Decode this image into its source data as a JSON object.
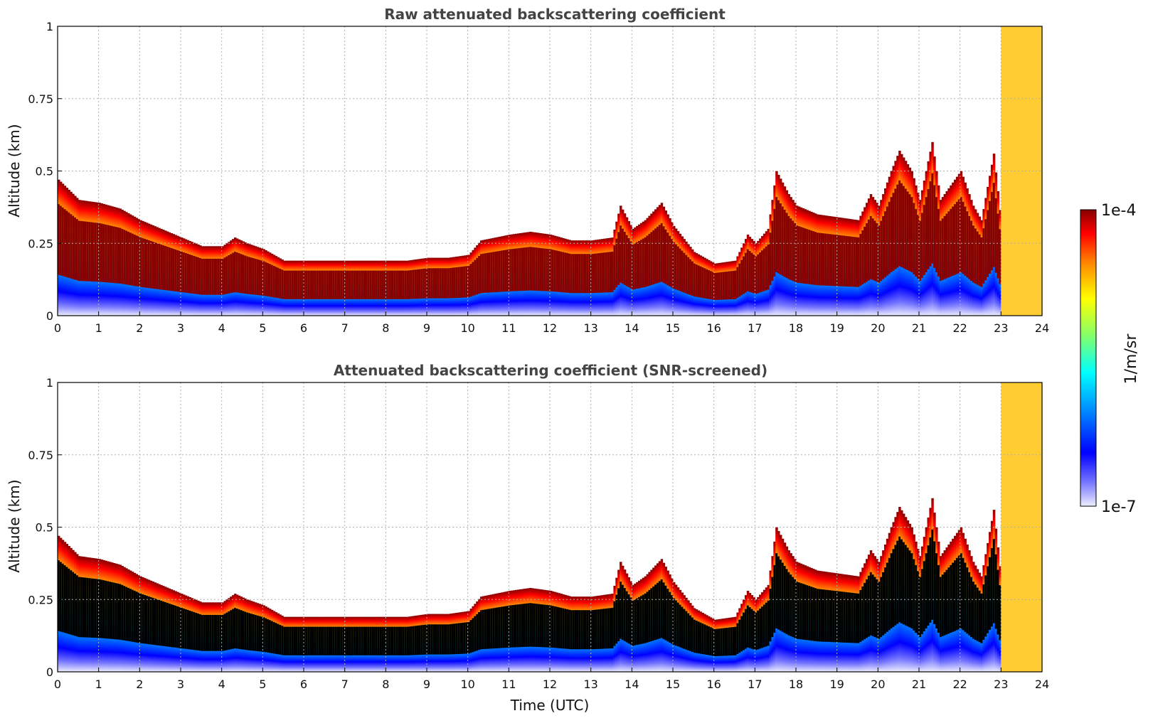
{
  "chart_data": [
    {
      "type": "heatmap",
      "title": "Raw attenuated backscattering coefficient",
      "xlabel": "",
      "ylabel": "Altitude (km)",
      "xlim": [
        0,
        24
      ],
      "ylim": [
        0,
        1
      ],
      "x_ticks": [
        "0",
        "1",
        "2",
        "3",
        "4",
        "5",
        "6",
        "7",
        "8",
        "9",
        "10",
        "11",
        "12",
        "13",
        "14",
        "15",
        "16",
        "17",
        "18",
        "19",
        "20",
        "21",
        "22",
        "23",
        "24"
      ],
      "y_ticks": [
        {
          "value": 0,
          "label": "0"
        },
        {
          "value": 0.25,
          "label": "0.25"
        },
        {
          "value": 0.5,
          "label": "0.5"
        },
        {
          "value": 0.75,
          "label": "0.75"
        },
        {
          "value": 1,
          "label": "1"
        }
      ],
      "grid": true,
      "screened": false,
      "boundary_layer_top_km": [
        [
          0,
          0.47
        ],
        [
          0.5,
          0.4
        ],
        [
          1,
          0.39
        ],
        [
          1.5,
          0.37
        ],
        [
          2,
          0.33
        ],
        [
          2.5,
          0.3
        ],
        [
          3,
          0.27
        ],
        [
          3.5,
          0.24
        ],
        [
          4,
          0.24
        ],
        [
          4.3,
          0.27
        ],
        [
          4.6,
          0.25
        ],
        [
          5,
          0.23
        ],
        [
          5.5,
          0.19
        ],
        [
          6,
          0.19
        ],
        [
          6.5,
          0.19
        ],
        [
          7,
          0.19
        ],
        [
          7.5,
          0.19
        ],
        [
          8,
          0.19
        ],
        [
          8.5,
          0.19
        ],
        [
          9,
          0.2
        ],
        [
          9.5,
          0.2
        ],
        [
          10,
          0.21
        ],
        [
          10.3,
          0.26
        ],
        [
          11,
          0.28
        ],
        [
          11.5,
          0.29
        ],
        [
          12,
          0.28
        ],
        [
          12.5,
          0.26
        ],
        [
          13,
          0.26
        ],
        [
          13.5,
          0.27
        ],
        [
          13.7,
          0.38
        ],
        [
          14,
          0.3
        ],
        [
          14.3,
          0.33
        ],
        [
          14.7,
          0.39
        ],
        [
          15,
          0.31
        ],
        [
          15.5,
          0.22
        ],
        [
          16,
          0.18
        ],
        [
          16.5,
          0.19
        ],
        [
          16.8,
          0.28
        ],
        [
          17,
          0.25
        ],
        [
          17.3,
          0.3
        ],
        [
          17.5,
          0.5
        ],
        [
          17.8,
          0.42
        ],
        [
          18,
          0.38
        ],
        [
          18.5,
          0.35
        ],
        [
          19,
          0.34
        ],
        [
          19.5,
          0.33
        ],
        [
          19.8,
          0.42
        ],
        [
          20,
          0.38
        ],
        [
          20.3,
          0.5
        ],
        [
          20.5,
          0.57
        ],
        [
          20.8,
          0.5
        ],
        [
          21,
          0.4
        ],
        [
          21.3,
          0.6
        ],
        [
          21.5,
          0.4
        ],
        [
          21.8,
          0.46
        ],
        [
          22,
          0.5
        ],
        [
          22.3,
          0.38
        ],
        [
          22.5,
          0.33
        ],
        [
          22.8,
          0.56
        ],
        [
          23,
          0.3
        ]
      ],
      "colorbar": {
        "min_label": "1e-7",
        "max_label": "1e-4",
        "unit": "1/m/sr"
      }
    },
    {
      "type": "heatmap",
      "title": "Attenuated backscattering coefficient (SNR-screened)",
      "xlabel": "Time (UTC)",
      "ylabel": "Altitude (km)",
      "xlim": [
        0,
        24
      ],
      "ylim": [
        0,
        1
      ],
      "x_ticks": [
        "0",
        "1",
        "2",
        "3",
        "4",
        "5",
        "6",
        "7",
        "8",
        "9",
        "10",
        "11",
        "12",
        "13",
        "14",
        "15",
        "16",
        "17",
        "18",
        "19",
        "20",
        "21",
        "22",
        "23",
        "24"
      ],
      "y_ticks": [
        {
          "value": 0,
          "label": "0"
        },
        {
          "value": 0.25,
          "label": "0.25"
        },
        {
          "value": 0.5,
          "label": "0.5"
        },
        {
          "value": 0.75,
          "label": "0.75"
        },
        {
          "value": 1,
          "label": "1"
        }
      ],
      "grid": true,
      "screened": true,
      "colorbar": {
        "min_label": "1e-7",
        "max_label": "1e-4",
        "unit": "1/m/sr"
      }
    }
  ]
}
